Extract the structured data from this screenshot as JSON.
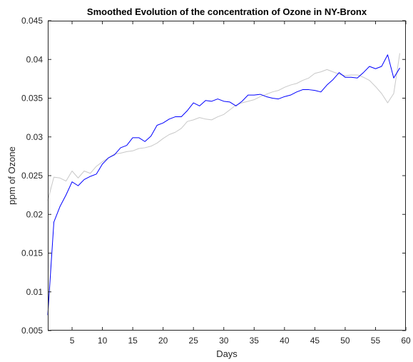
{
  "chart_data": {
    "type": "line",
    "title": "Smoothed Evolution of the concentration of Ozone in NY-Bronx",
    "xlabel": "Days",
    "ylabel": "ppm of Ozone",
    "xlim": [
      1,
      60
    ],
    "ylim": [
      0.005,
      0.045
    ],
    "xticks": [
      5,
      10,
      15,
      20,
      25,
      30,
      35,
      40,
      45,
      50,
      55,
      60
    ],
    "yticks": [
      0.005,
      0.01,
      0.015,
      0.02,
      0.025,
      0.03,
      0.035,
      0.04,
      0.045
    ],
    "xtick_labels": [
      "5",
      "10",
      "15",
      "20",
      "25",
      "30",
      "35",
      "40",
      "45",
      "50",
      "55",
      "60"
    ],
    "ytick_labels": [
      "0.005",
      "0.01",
      "0.015",
      "0.02",
      "0.025",
      "0.03",
      "0.035",
      "0.04",
      "0.045"
    ],
    "grid": false,
    "legend": false,
    "x": [
      1,
      2,
      3,
      4,
      5,
      6,
      7,
      8,
      9,
      10,
      11,
      12,
      13,
      14,
      15,
      16,
      17,
      18,
      19,
      20,
      21,
      22,
      23,
      24,
      25,
      26,
      27,
      28,
      29,
      30,
      31,
      32,
      33,
      34,
      35,
      36,
      37,
      38,
      39,
      40,
      41,
      42,
      43,
      44,
      45,
      46,
      47,
      48,
      49,
      50,
      51,
      52,
      53,
      54,
      55,
      56,
      57,
      58,
      59
    ],
    "series": [
      {
        "color": "#c8c8c8",
        "values": [
          0.0218,
          0.0248,
          0.0247,
          0.0243,
          0.0256,
          0.0247,
          0.0256,
          0.0253,
          0.0262,
          0.0268,
          0.0273,
          0.0278,
          0.0279,
          0.0281,
          0.0282,
          0.0285,
          0.0286,
          0.0288,
          0.0292,
          0.0298,
          0.0303,
          0.0306,
          0.0311,
          0.032,
          0.0322,
          0.0325,
          0.0323,
          0.0322,
          0.0326,
          0.0329,
          0.0335,
          0.0341,
          0.0344,
          0.0346,
          0.0348,
          0.0352,
          0.0355,
          0.0358,
          0.036,
          0.0364,
          0.0367,
          0.0369,
          0.0373,
          0.0376,
          0.0382,
          0.0384,
          0.0387,
          0.0384,
          0.0381,
          0.0379,
          0.038,
          0.038,
          0.0377,
          0.0373,
          0.0365,
          0.0356,
          0.0344,
          0.0356,
          0.0408
        ]
      },
      {
        "color": "#0000ff",
        "values": [
          0.007,
          0.019,
          0.021,
          0.0225,
          0.0242,
          0.0237,
          0.0245,
          0.0249,
          0.0252,
          0.0265,
          0.0273,
          0.0277,
          0.0286,
          0.0289,
          0.0299,
          0.0299,
          0.0294,
          0.0301,
          0.0315,
          0.0318,
          0.0323,
          0.0326,
          0.0326,
          0.0334,
          0.0344,
          0.034,
          0.0347,
          0.0346,
          0.0349,
          0.0346,
          0.0345,
          0.034,
          0.0346,
          0.0354,
          0.0354,
          0.0355,
          0.0352,
          0.035,
          0.0349,
          0.0352,
          0.0354,
          0.0358,
          0.0361,
          0.0361,
          0.036,
          0.0358,
          0.0367,
          0.0374,
          0.0383,
          0.0377,
          0.0377,
          0.0376,
          0.0383,
          0.0391,
          0.0388,
          0.0391,
          0.0406,
          0.0376,
          0.0389
        ]
      }
    ]
  }
}
